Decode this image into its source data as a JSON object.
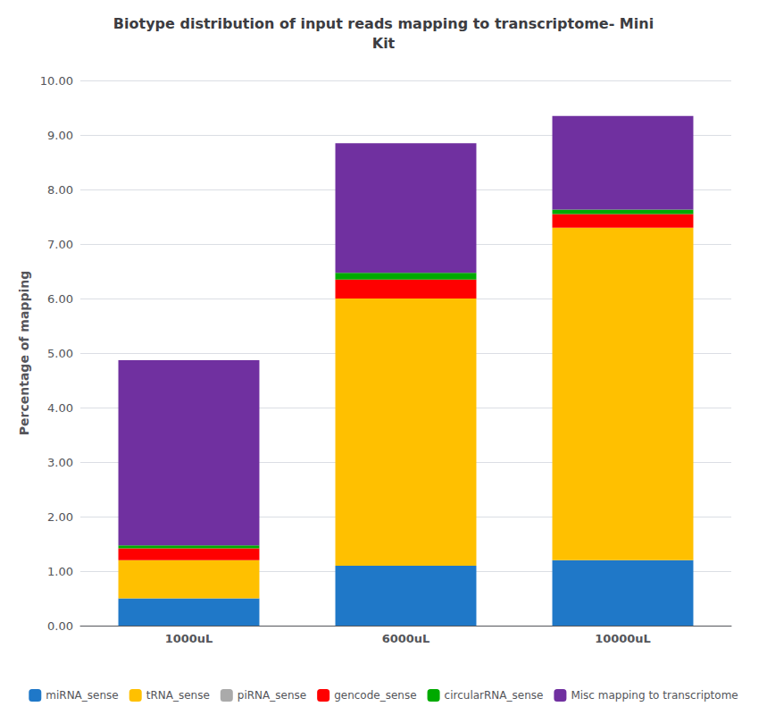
{
  "chart_data": {
    "type": "bar",
    "stacked": true,
    "title": "Biotype distribution of input reads mapping to transcriptome- Mini\nKit",
    "ylabel": "Percentage of mapping",
    "categories": [
      "1000uL",
      "6000uL",
      "10000uL"
    ],
    "series": [
      {
        "name": "miRNA_sense",
        "color": "#1F78C8",
        "values": [
          0.5,
          1.1,
          1.2
        ]
      },
      {
        "name": "tRNA_sense",
        "color": "#FFC000",
        "values": [
          0.7,
          4.9,
          6.1
        ]
      },
      {
        "name": "piRNA_sense",
        "color": "#AAAAAA",
        "values": [
          0.0,
          0.0,
          0.0
        ]
      },
      {
        "name": "gencode_sense",
        "color": "#FF0000",
        "values": [
          0.22,
          0.35,
          0.25
        ]
      },
      {
        "name": "circularRNA_sense",
        "color": "#00AA00",
        "values": [
          0.05,
          0.12,
          0.08
        ]
      },
      {
        "name": "Misc mapping to transcriptome",
        "color": "#7030A0",
        "values": [
          3.4,
          2.38,
          1.72
        ]
      }
    ],
    "ylim": [
      0,
      10.0
    ],
    "yticks": [
      {
        "value": 0,
        "label": "0.00"
      },
      {
        "value": 1,
        "label": "1.00"
      },
      {
        "value": 2,
        "label": "2.00"
      },
      {
        "value": 3,
        "label": "3.00"
      },
      {
        "value": 4,
        "label": "4.00"
      },
      {
        "value": 5,
        "label": "5.00"
      },
      {
        "value": 6,
        "label": "6.00"
      },
      {
        "value": 7,
        "label": "7.00"
      },
      {
        "value": 8,
        "label": "8.00"
      },
      {
        "value": 9,
        "label": "9.00"
      },
      {
        "value": 10,
        "label": "10.00"
      }
    ],
    "grid": true,
    "legend": "bottom"
  }
}
